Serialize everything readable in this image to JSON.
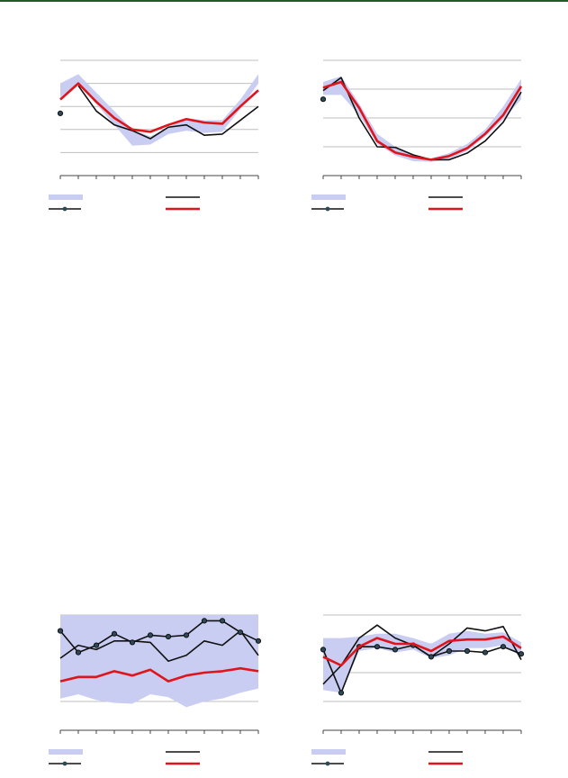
{
  "colors": {
    "header_rule": "#1f5a2a",
    "band": "#c9cdf2",
    "black_line": "#111111",
    "marker_line": "#111111",
    "red_line": "#e0141b",
    "grid": "#bfbfbf"
  },
  "chart_data": [
    {
      "type": "line",
      "title": "",
      "x": [
        0,
        1,
        2,
        3,
        4,
        5,
        6,
        7,
        8,
        9,
        10,
        11
      ],
      "ylim": [
        0,
        5
      ],
      "yticks": [
        1,
        2,
        3,
        4,
        5
      ],
      "grid": true,
      "legend_position": "bottom",
      "band": {
        "name": "",
        "lower": [
          3.4,
          4.0,
          3.1,
          2.2,
          1.3,
          1.35,
          1.8,
          1.95,
          1.85,
          1.9,
          2.9,
          4.0
        ],
        "upper": [
          4.0,
          4.4,
          3.6,
          2.8,
          2.0,
          1.7,
          2.1,
          2.5,
          2.4,
          2.4,
          3.3,
          4.4
        ]
      },
      "series": [
        {
          "name": "",
          "style": "black",
          "values": [
            null,
            3.9,
            2.8,
            2.2,
            1.95,
            1.6,
            2.1,
            2.2,
            1.75,
            1.8,
            2.4,
            3.0
          ]
        },
        {
          "name": "",
          "style": "marker",
          "values": [
            2.7,
            null,
            null,
            null,
            null,
            null,
            null,
            null,
            null,
            null,
            null,
            null
          ]
        },
        {
          "name": "",
          "style": "red",
          "values": [
            3.3,
            4.0,
            3.2,
            2.5,
            2.0,
            1.9,
            2.2,
            2.45,
            2.3,
            2.25,
            3.0,
            3.7
          ]
        }
      ]
    },
    {
      "type": "line",
      "title": "",
      "x": [
        0,
        1,
        2,
        3,
        4,
        5,
        6,
        7,
        8,
        9,
        10,
        11
      ],
      "ylim": [
        0,
        4
      ],
      "yticks": [
        1,
        2,
        3,
        4
      ],
      "grid": true,
      "legend_position": "bottom",
      "band": {
        "name": "",
        "lower": [
          2.8,
          2.8,
          2.1,
          1.1,
          0.7,
          0.5,
          0.48,
          0.58,
          0.85,
          1.35,
          1.95,
          2.65
        ],
        "upper": [
          3.25,
          3.45,
          2.5,
          1.45,
          1.0,
          0.7,
          0.6,
          0.78,
          1.1,
          1.6,
          2.4,
          3.35
        ]
      },
      "series": [
        {
          "name": "",
          "style": "black",
          "values": [
            2.95,
            3.4,
            2.0,
            1.0,
            0.98,
            0.72,
            0.55,
            0.55,
            0.78,
            1.2,
            1.85,
            2.9
          ]
        },
        {
          "name": "",
          "style": "marker",
          "values": [
            2.65,
            null,
            null,
            null,
            null,
            null,
            null,
            null,
            null,
            null,
            null,
            null
          ]
        },
        {
          "name": "",
          "style": "red",
          "values": [
            3.05,
            3.25,
            2.35,
            1.2,
            0.8,
            0.65,
            0.55,
            0.68,
            0.95,
            1.45,
            2.1,
            3.1
          ]
        }
      ]
    },
    {
      "type": "line",
      "title": "",
      "x": [
        0,
        1,
        2,
        3,
        4,
        5,
        6,
        7,
        8,
        9,
        10,
        11
      ],
      "ylim": [
        0,
        4
      ],
      "yticks": [
        1,
        2,
        3,
        4
      ],
      "grid": true,
      "legend_position": "bottom",
      "band": {
        "name": "",
        "lower": [
          1.1,
          1.25,
          1.05,
          0.95,
          0.92,
          1.25,
          1.15,
          0.8,
          1.0,
          1.1,
          1.3,
          1.45
        ],
        "upper": [
          null,
          null,
          null,
          null,
          null,
          null,
          null,
          null,
          null,
          null,
          null,
          null
        ]
      },
      "series": [
        {
          "name": "",
          "style": "black",
          "values": [
            2.5,
            2.95,
            2.8,
            3.1,
            3.1,
            3.05,
            2.4,
            2.6,
            3.1,
            2.95,
            3.45,
            2.6
          ]
        },
        {
          "name": "",
          "style": "marker",
          "values": [
            3.45,
            2.7,
            2.95,
            3.35,
            3.05,
            3.3,
            3.25,
            3.3,
            3.8,
            3.8,
            3.4,
            3.1
          ]
        },
        {
          "name": "",
          "style": "red",
          "values": [
            1.7,
            1.85,
            1.85,
            2.05,
            1.9,
            2.1,
            1.7,
            1.9,
            2.0,
            2.05,
            2.15,
            2.05
          ]
        }
      ]
    },
    {
      "type": "line",
      "title": "",
      "x": [
        0,
        1,
        2,
        3,
        4,
        5,
        6,
        7,
        8,
        9,
        10,
        11
      ],
      "ylim": [
        0,
        4
      ],
      "yticks": [
        1,
        2,
        3,
        4
      ],
      "grid": true,
      "legend_position": "bottom",
      "band": {
        "name": "",
        "lower": [
          1.4,
          1.3,
          2.75,
          2.85,
          2.7,
          2.8,
          2.5,
          2.6,
          2.85,
          2.85,
          2.95,
          2.55
        ],
        "upper": [
          3.2,
          3.2,
          3.25,
          3.35,
          3.35,
          3.2,
          3.0,
          3.35,
          3.45,
          3.35,
          3.4,
          3.05
        ]
      },
      "series": [
        {
          "name": "",
          "style": "black",
          "values": [
            1.6,
            2.25,
            3.2,
            3.65,
            3.2,
            2.95,
            2.55,
            3.0,
            3.55,
            3.45,
            3.6,
            2.45
          ]
        },
        {
          "name": "",
          "style": "marker",
          "values": [
            2.8,
            1.3,
            2.9,
            2.9,
            2.8,
            2.95,
            2.55,
            2.75,
            2.75,
            2.7,
            2.9,
            2.65
          ]
        },
        {
          "name": "",
          "style": "red",
          "values": [
            2.55,
            2.25,
            2.9,
            3.2,
            3.0,
            3.0,
            2.75,
            3.1,
            3.15,
            3.15,
            3.25,
            2.85
          ]
        }
      ]
    }
  ]
}
